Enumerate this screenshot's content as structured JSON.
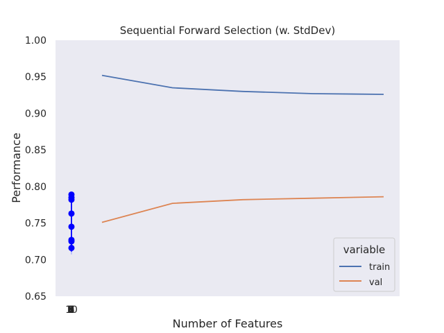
{
  "chart_data": {
    "type": "line",
    "title": "Sequential Forward Selection (w. StdDev)",
    "xlabel": "Number of Features",
    "ylabel": "Performance",
    "ylim": [
      0.65,
      1.0
    ],
    "yticks": [
      "0.65",
      "0.70",
      "0.75",
      "0.80",
      "0.85",
      "0.90",
      "0.95",
      "1.00"
    ],
    "xtick_labels": [
      "1",
      "2",
      "3",
      "4",
      "5",
      "6",
      "7",
      "8",
      "9",
      "10"
    ],
    "grid": false,
    "background": "#EAEAF2",
    "legend": {
      "title": "variable",
      "placement": "lower-right"
    },
    "series": [
      {
        "name": "train",
        "color": "#4C72B0",
        "x": [
          1,
          2,
          3,
          4,
          5
        ],
        "y": [
          0.952,
          0.935,
          0.93,
          0.927,
          0.926
        ]
      },
      {
        "name": "val",
        "color": "#DD8452",
        "x": [
          1,
          2,
          3,
          4,
          5
        ],
        "y": [
          0.751,
          0.777,
          0.782,
          0.784,
          0.786
        ]
      }
    ],
    "stddev_points": {
      "color": "#0000FF",
      "y": [
        0.789,
        0.785,
        0.782,
        0.763,
        0.745,
        0.727,
        0.725,
        0.716
      ],
      "error_top": 0.792,
      "error_bottom": 0.711
    }
  }
}
